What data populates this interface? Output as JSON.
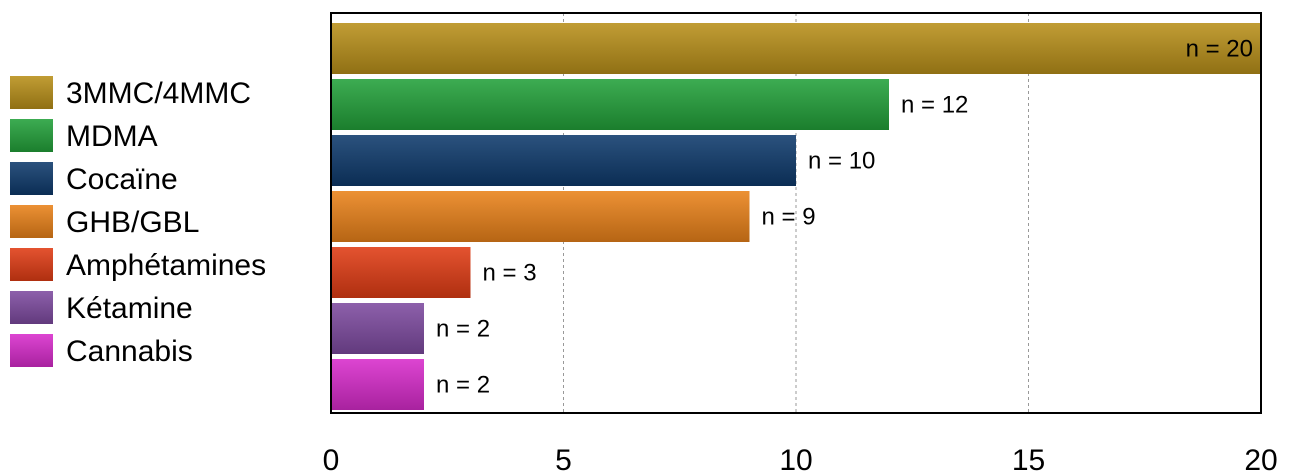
{
  "chart_data": {
    "type": "bar",
    "orientation": "horizontal",
    "categories": [
      "3MMC/4MMC",
      "MDMA",
      "Cocaïne",
      "GHB/GBL",
      "Amphétamines",
      "Kétamine",
      "Cannabis"
    ],
    "values": [
      20,
      12,
      10,
      9,
      3,
      2,
      2
    ],
    "data_labels": [
      "n = 20",
      "n = 12",
      "n = 10",
      "n = 9",
      "n = 3",
      "n = 2",
      "n = 2"
    ],
    "colors": [
      "#b8901a",
      "#23a13a",
      "#0e3a6c",
      "#e9821a",
      "#e03c14",
      "#7d4aa0",
      "#d82ccc"
    ],
    "title": "",
    "xlabel": "",
    "ylabel": "",
    "xlim": [
      0,
      20
    ],
    "xticks": [
      "0",
      "5",
      "10",
      "15",
      "20"
    ],
    "grid": "vertical dashed",
    "legend_position": "left"
  }
}
